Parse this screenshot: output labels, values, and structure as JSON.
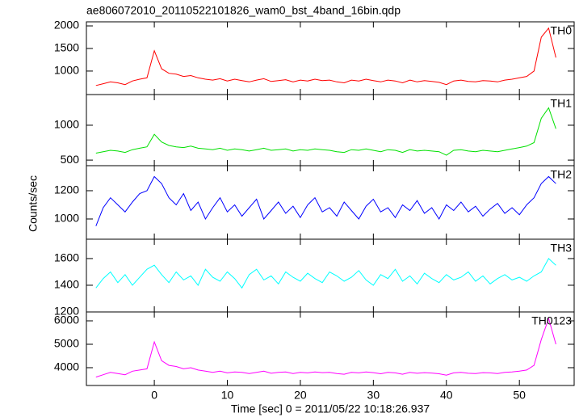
{
  "chart_data": [
    {
      "type": "line",
      "title": "ae806072010_20110522101826_wam0_bst_4band_16bin.qdp",
      "x": [
        -8,
        -7,
        -6,
        -5,
        -4,
        -3,
        -2,
        -1,
        0,
        1,
        2,
        3,
        4,
        5,
        6,
        7,
        8,
        9,
        10,
        11,
        12,
        13,
        14,
        15,
        16,
        17,
        18,
        19,
        20,
        21,
        22,
        23,
        24,
        25,
        26,
        27,
        28,
        29,
        30,
        31,
        32,
        33,
        34,
        35,
        36,
        37,
        38,
        39,
        40,
        41,
        42,
        43,
        44,
        45,
        46,
        47,
        48,
        49,
        50,
        51,
        52,
        53,
        54,
        55
      ],
      "series": [
        {
          "name": "TH0",
          "color": "#ff0000",
          "values": [
            680,
            720,
            760,
            740,
            700,
            780,
            820,
            850,
            1450,
            1050,
            950,
            930,
            880,
            900,
            850,
            820,
            800,
            830,
            780,
            820,
            790,
            760,
            800,
            830,
            770,
            790,
            810,
            760,
            800,
            780,
            820,
            790,
            800,
            760,
            740,
            800,
            780,
            820,
            790,
            760,
            800,
            780,
            740,
            800,
            760,
            790,
            770,
            750,
            700,
            780,
            800,
            770,
            760,
            790,
            780,
            760,
            800,
            820,
            850,
            880,
            1000,
            1750,
            1950,
            1300
          ]
        }
      ],
      "xlim": [
        -9.3,
        57.5
      ],
      "xticks": [
        0,
        10,
        20,
        30,
        40,
        50
      ],
      "ylim": [
        480,
        2090
      ],
      "yticks": [
        1000,
        1500,
        2000
      ]
    },
    {
      "type": "line",
      "x": [
        -8,
        -7,
        -6,
        -5,
        -4,
        -3,
        -2,
        -1,
        0,
        1,
        2,
        3,
        4,
        5,
        6,
        7,
        8,
        9,
        10,
        11,
        12,
        13,
        14,
        15,
        16,
        17,
        18,
        19,
        20,
        21,
        22,
        23,
        24,
        25,
        26,
        27,
        28,
        29,
        30,
        31,
        32,
        33,
        34,
        35,
        36,
        37,
        38,
        39,
        40,
        41,
        42,
        43,
        44,
        45,
        46,
        47,
        48,
        49,
        50,
        51,
        52,
        53,
        54,
        55
      ],
      "series": [
        {
          "name": "TH1",
          "color": "#00e000",
          "values": [
            600,
            620,
            640,
            630,
            610,
            650,
            670,
            690,
            870,
            760,
            710,
            690,
            680,
            700,
            670,
            660,
            650,
            670,
            640,
            660,
            650,
            630,
            650,
            670,
            640,
            650,
            660,
            630,
            650,
            640,
            660,
            650,
            640,
            620,
            610,
            650,
            640,
            660,
            640,
            620,
            650,
            640,
            610,
            650,
            630,
            640,
            630,
            620,
            570,
            640,
            650,
            630,
            620,
            640,
            630,
            620,
            640,
            660,
            680,
            700,
            750,
            1100,
            1250,
            950
          ]
        }
      ],
      "xlim": [
        -9.3,
        57.5
      ],
      "xticks": [
        0,
        10,
        20,
        30,
        40,
        50
      ],
      "ylim": [
        420,
        1440
      ],
      "yticks": [
        500,
        1000
      ]
    },
    {
      "type": "line",
      "ylabel": "Counts/sec",
      "x": [
        -8,
        -7,
        -6,
        -5,
        -4,
        -3,
        -2,
        -1,
        0,
        1,
        2,
        3,
        4,
        5,
        6,
        7,
        8,
        9,
        10,
        11,
        12,
        13,
        14,
        15,
        16,
        17,
        18,
        19,
        20,
        21,
        22,
        23,
        24,
        25,
        26,
        27,
        28,
        29,
        30,
        31,
        32,
        33,
        34,
        35,
        36,
        37,
        38,
        39,
        40,
        41,
        42,
        43,
        44,
        45,
        46,
        47,
        48,
        49,
        50,
        51,
        52,
        53,
        54,
        55
      ],
      "series": [
        {
          "name": "TH2",
          "color": "#0000ff",
          "values": [
            950,
            1080,
            1150,
            1100,
            1050,
            1120,
            1180,
            1200,
            1300,
            1250,
            1150,
            1100,
            1180,
            1060,
            1120,
            1000,
            1080,
            1150,
            1050,
            1100,
            1020,
            1080,
            1140,
            1000,
            1060,
            1120,
            1040,
            1090,
            1010,
            1100,
            1150,
            1050,
            1080,
            1020,
            1120,
            1060,
            1000,
            1090,
            1140,
            1050,
            1080,
            1010,
            1100,
            1060,
            1130,
            1040,
            1080,
            1000,
            1100,
            1060,
            1120,
            1050,
            1090,
            1020,
            1070,
            1110,
            1040,
            1080,
            1030,
            1100,
            1150,
            1250,
            1300,
            1250
          ]
        }
      ],
      "xlim": [
        -9.3,
        57.5
      ],
      "xticks": [
        0,
        10,
        20,
        30,
        40,
        50
      ],
      "ylim": [
        857,
        1377
      ],
      "yticks": [
        1000,
        1200
      ]
    },
    {
      "type": "line",
      "x": [
        -8,
        -7,
        -6,
        -5,
        -4,
        -3,
        -2,
        -1,
        0,
        1,
        2,
        3,
        4,
        5,
        6,
        7,
        8,
        9,
        10,
        11,
        12,
        13,
        14,
        15,
        16,
        17,
        18,
        19,
        20,
        21,
        22,
        23,
        24,
        25,
        26,
        27,
        28,
        29,
        30,
        31,
        32,
        33,
        34,
        35,
        36,
        37,
        38,
        39,
        40,
        41,
        42,
        43,
        44,
        45,
        46,
        47,
        48,
        49,
        50,
        51,
        52,
        53,
        54,
        55
      ],
      "series": [
        {
          "name": "TH3",
          "color": "#00ffff",
          "values": [
            1380,
            1450,
            1500,
            1420,
            1480,
            1400,
            1460,
            1520,
            1550,
            1480,
            1420,
            1500,
            1440,
            1470,
            1400,
            1520,
            1460,
            1430,
            1500,
            1450,
            1380,
            1480,
            1520,
            1440,
            1470,
            1410,
            1500,
            1460,
            1430,
            1490,
            1450,
            1420,
            1500,
            1470,
            1430,
            1460,
            1510,
            1440,
            1400,
            1480,
            1450,
            1520,
            1430,
            1470,
            1410,
            1490,
            1450,
            1420,
            1480,
            1440,
            1460,
            1500,
            1430,
            1470,
            1410,
            1450,
            1480,
            1440,
            1460,
            1430,
            1470,
            1500,
            1600,
            1550
          ]
        }
      ],
      "xlim": [
        -9.3,
        57.5
      ],
      "xticks": [
        0,
        10,
        20,
        30,
        40,
        50
      ],
      "ylim": [
        1200,
        1745
      ],
      "yticks": [
        1200,
        1400,
        1600
      ]
    },
    {
      "type": "line",
      "xlabel": "Time [sec] 0 = 2011/05/22 10:18:26.937",
      "x": [
        -8,
        -7,
        -6,
        -5,
        -4,
        -3,
        -2,
        -1,
        0,
        1,
        2,
        3,
        4,
        5,
        6,
        7,
        8,
        9,
        10,
        11,
        12,
        13,
        14,
        15,
        16,
        17,
        18,
        19,
        20,
        21,
        22,
        23,
        24,
        25,
        26,
        27,
        28,
        29,
        30,
        31,
        32,
        33,
        34,
        35,
        36,
        37,
        38,
        39,
        40,
        41,
        42,
        43,
        44,
        45,
        46,
        47,
        48,
        49,
        50,
        51,
        52,
        53,
        54,
        55
      ],
      "series": [
        {
          "name": "TH0123",
          "color": "#ff00ff",
          "values": [
            3600,
            3700,
            3800,
            3750,
            3700,
            3850,
            3900,
            3950,
            5100,
            4300,
            4100,
            4050,
            3950,
            4000,
            3900,
            3850,
            3800,
            3850,
            3780,
            3820,
            3800,
            3750,
            3800,
            3850,
            3760,
            3800,
            3820,
            3750,
            3800,
            3780,
            3820,
            3790,
            3800,
            3750,
            3720,
            3800,
            3780,
            3820,
            3790,
            3740,
            3800,
            3780,
            3720,
            3800,
            3760,
            3790,
            3770,
            3740,
            3680,
            3780,
            3800,
            3760,
            3750,
            3790,
            3780,
            3750,
            3800,
            3820,
            3850,
            3900,
            4100,
            5200,
            6100,
            5000
          ]
        }
      ],
      "xlim": [
        -9.3,
        57.5
      ],
      "xticks": [
        0,
        10,
        20,
        30,
        40,
        50
      ],
      "ylim": [
        3240,
        6380
      ],
      "yticks": [
        4000,
        5000,
        6000
      ]
    }
  ]
}
